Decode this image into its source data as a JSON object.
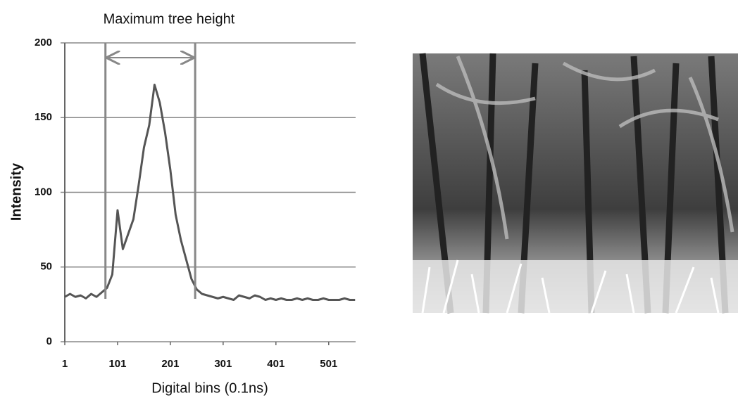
{
  "chart_data": {
    "type": "line",
    "title": "Maximum tree height",
    "x_label": "Digital bins (0.1ns)",
    "y_label": "Intensity",
    "x": [
      1,
      11,
      21,
      31,
      41,
      51,
      61,
      71,
      81,
      91,
      101,
      111,
      121,
      131,
      141,
      151,
      161,
      171,
      181,
      191,
      201,
      211,
      221,
      231,
      241,
      251,
      261,
      271,
      281,
      291,
      301,
      311,
      321,
      331,
      341,
      351,
      361,
      371,
      381,
      391,
      401,
      411,
      421,
      431,
      441,
      451,
      461,
      471,
      481,
      491,
      501,
      511,
      521,
      531,
      541,
      551
    ],
    "series": [
      {
        "name": "Intensity",
        "color": "#555555",
        "values": [
          30,
          32,
          30,
          31,
          29,
          32,
          30,
          33,
          36,
          45,
          88,
          62,
          72,
          82,
          105,
          130,
          145,
          172,
          160,
          140,
          115,
          85,
          68,
          55,
          42,
          35,
          32,
          31,
          30,
          29,
          30,
          29,
          28,
          31,
          30,
          29,
          31,
          30,
          28,
          29,
          28,
          29,
          28,
          28,
          29,
          28,
          29,
          28,
          28,
          29,
          28,
          28,
          28,
          29,
          28,
          28
        ]
      }
    ],
    "xlim": [
      1,
      552
    ],
    "xticks": [
      1,
      101,
      201,
      301,
      401,
      501
    ],
    "ylim": [
      0,
      200
    ],
    "yticks": [
      0,
      50,
      100,
      150,
      200
    ],
    "grid": true,
    "vlines": [
      78,
      248
    ]
  }
}
